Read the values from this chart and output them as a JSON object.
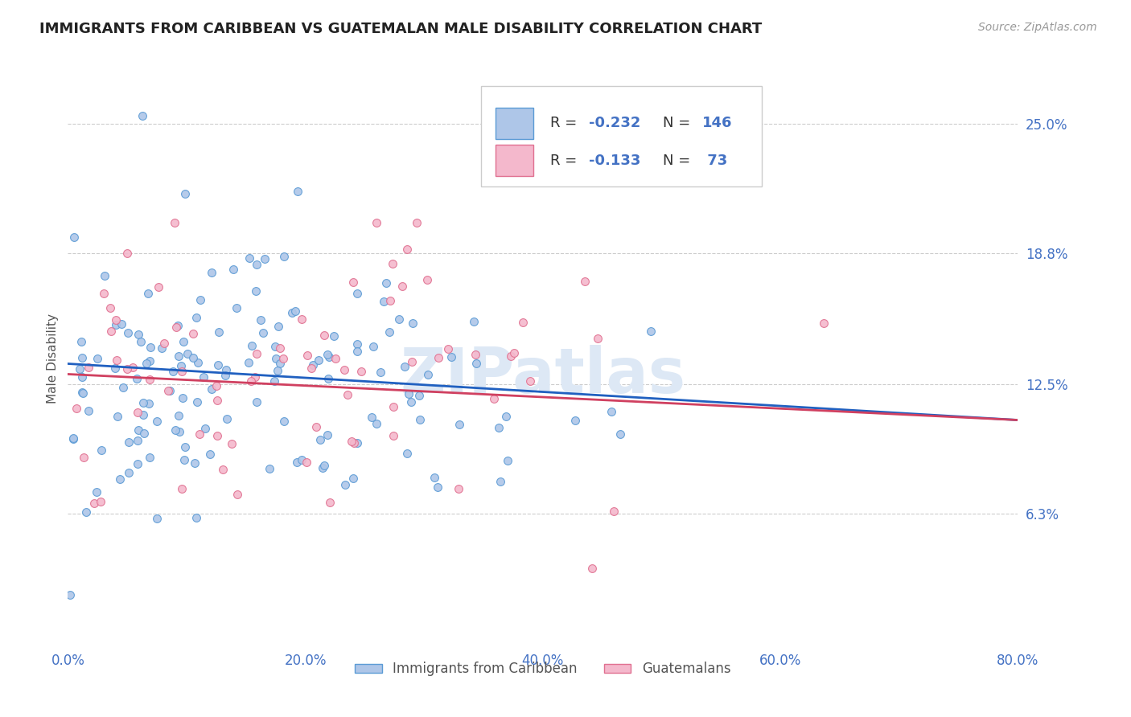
{
  "title": "IMMIGRANTS FROM CARIBBEAN VS GUATEMALAN MALE DISABILITY CORRELATION CHART",
  "source": "Source: ZipAtlas.com",
  "ylabel": "Male Disability",
  "xlim": [
    0.0,
    0.8
  ],
  "ylim": [
    0.0,
    0.275
  ],
  "yticks": [
    0.063,
    0.125,
    0.188,
    0.25
  ],
  "yticklabels": [
    "6.3%",
    "12.5%",
    "18.8%",
    "25.0%"
  ],
  "xticks": [
    0.0,
    0.2,
    0.4,
    0.6,
    0.8
  ],
  "xticklabels": [
    "0.0%",
    "20.0%",
    "40.0%",
    "60.0%",
    "80.0%"
  ],
  "series1_label": "Immigrants from Caribbean",
  "series1_color": "#aec6e8",
  "series1_edge_color": "#5b9bd5",
  "series1_R": "-0.232",
  "series1_N": "146",
  "series2_label": "Guatemalans",
  "series2_color": "#f4b8cc",
  "series2_edge_color": "#e07090",
  "series2_R": "-0.133",
  "series2_N": "73",
  "line1_color": "#2060c0",
  "line2_color": "#d04060",
  "background_color": "#ffffff",
  "grid_color": "#cccccc",
  "title_color": "#222222",
  "axis_label_color": "#555555",
  "tick_label_color": "#4472c4",
  "text_color_dark": "#333333",
  "text_color_blue": "#4472c4",
  "watermark_color": "#dde8f5",
  "watermark": "ZIPatlas",
  "seed": 42
}
